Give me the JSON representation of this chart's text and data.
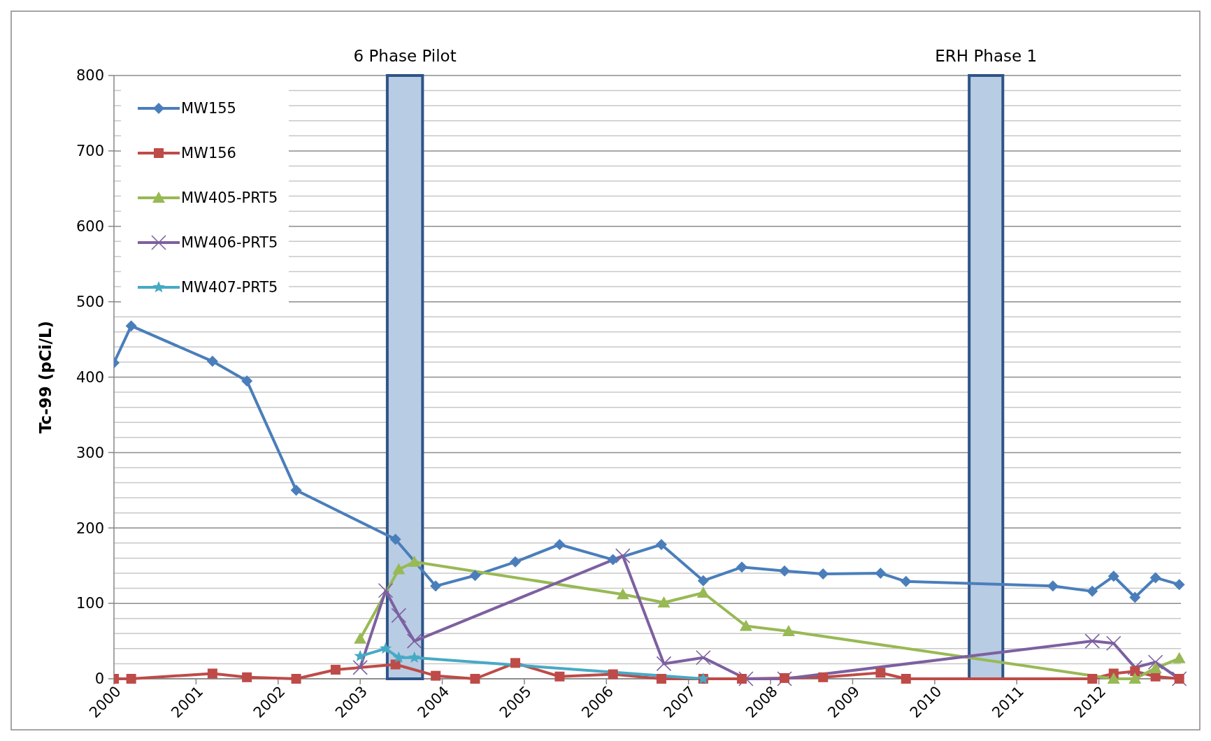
{
  "chart_data": {
    "type": "line",
    "ylabel": "Tc-99 (pCi/L)",
    "xlim": [
      2000,
      2013
    ],
    "ylim": [
      0,
      800
    ],
    "xticks": [
      2000,
      2001,
      2002,
      2003,
      2004,
      2005,
      2006,
      2007,
      2008,
      2009,
      2010,
      2011,
      2012
    ],
    "yticks": [
      0,
      100,
      200,
      300,
      400,
      500,
      600,
      700,
      800
    ],
    "grid": "y",
    "legend": "top left",
    "line_style": "solid",
    "bands": [
      {
        "axis": "x",
        "from": 2003.33,
        "to": 2003.76,
        "label": "6 Phase Pilot",
        "color": "#b8cce4"
      },
      {
        "axis": "x",
        "from": 2010.42,
        "to": 2010.83,
        "label": "ERH Phase 1",
        "color": "#b8cce4"
      }
    ],
    "series": [
      {
        "name": "MW155",
        "color": "#4a7ebb",
        "marker": "diamond",
        "x": [
          2000,
          2000.21,
          2001.2,
          2001.62,
          2002.22,
          2003.43,
          2003.92,
          2004.4,
          2004.89,
          2005.43,
          2006.08,
          2006.67,
          2007.18,
          2007.65,
          2008.17,
          2008.64,
          2009.34,
          2009.65,
          2011.44,
          2011.92,
          2012.18,
          2012.44,
          2012.69,
          2012.98
        ],
        "values": [
          419,
          468,
          421,
          395,
          250,
          185,
          123,
          137,
          155,
          178,
          158,
          178,
          130,
          148,
          143,
          139,
          140,
          129,
          123,
          116,
          136,
          108,
          134,
          125
        ]
      },
      {
        "name": "MW156",
        "color": "#be4b48",
        "marker": "square",
        "x": [
          2000,
          2000.21,
          2001.2,
          2001.62,
          2002.22,
          2002.7,
          2003.43,
          2003.92,
          2004.4,
          2004.89,
          2005.43,
          2006.08,
          2006.67,
          2007.18,
          2007.65,
          2008.17,
          2008.64,
          2009.34,
          2009.65,
          2011.92,
          2012.18,
          2012.44,
          2012.69,
          2012.98
        ],
        "values": [
          0,
          0,
          7,
          2,
          0,
          12,
          19,
          4,
          0,
          21,
          3,
          6,
          0,
          0,
          0,
          1,
          2,
          8,
          0,
          0,
          7,
          10,
          3,
          0
        ]
      },
      {
        "name": "MW405-PRT5",
        "color": "#98b954",
        "marker": "triangle",
        "x": [
          2003.0,
          2003.47,
          2003.66,
          2006.2,
          2006.7,
          2007.18,
          2007.7,
          2008.22,
          2012.18,
          2012.44,
          2012.69,
          2012.98
        ],
        "values": [
          53,
          145,
          155,
          112,
          101,
          114,
          70,
          63,
          0,
          0,
          14,
          27
        ]
      },
      {
        "name": "MW406-PRT5",
        "color": "#7d60a0",
        "marker": "cross",
        "x": [
          2003.0,
          2003.31,
          2003.47,
          2003.66,
          2006.2,
          2006.7,
          2007.18,
          2007.7,
          2008.17,
          2011.92,
          2012.18,
          2012.44,
          2012.69,
          2012.98
        ],
        "values": [
          15,
          117,
          84,
          50,
          163,
          20,
          28,
          0,
          0,
          50,
          47,
          15,
          22,
          0
        ]
      },
      {
        "name": "MW407-PRT5",
        "color": "#46aac5",
        "marker": "star",
        "x": [
          2003.0,
          2003.31,
          2003.47,
          2003.66,
          2007.18
        ],
        "values": [
          30,
          40,
          28,
          28,
          0
        ]
      }
    ]
  }
}
